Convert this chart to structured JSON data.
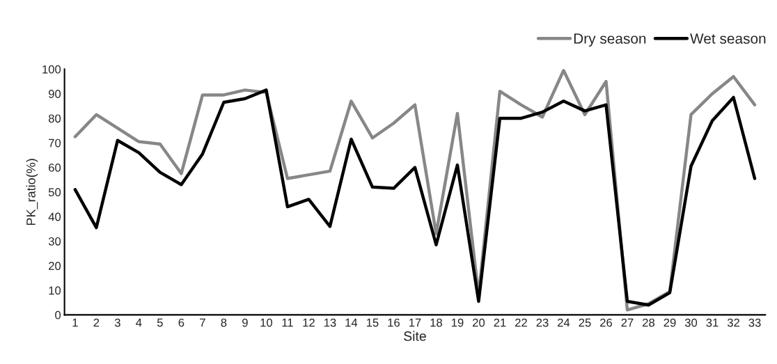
{
  "chart_data": {
    "type": "line",
    "xlabel": "Site",
    "ylabel": "PK_ratio(%)",
    "categories": [
      "1",
      "2",
      "3",
      "4",
      "5",
      "6",
      "7",
      "8",
      "9",
      "10",
      "11",
      "12",
      "13",
      "14",
      "15",
      "16",
      "17",
      "18",
      "19",
      "20",
      "21",
      "22",
      "23",
      "24",
      "25",
      "26",
      "27",
      "28",
      "29",
      "30",
      "31",
      "32",
      "33"
    ],
    "series": [
      {
        "name": "Dry season",
        "color": "#878787",
        "values": [
          72.5,
          81.5,
          76,
          70.5,
          69.5,
          57.5,
          89.5,
          89.5,
          91.5,
          90.5,
          55.5,
          57,
          58.5,
          87,
          72,
          78,
          85.5,
          33,
          82,
          8,
          91,
          85.5,
          80.5,
          99.5,
          81.5,
          95,
          2,
          4.5,
          9.5,
          81.5,
          90,
          97,
          85.5
        ]
      },
      {
        "name": "Wet season",
        "color": "#000000",
        "values": [
          51,
          35.5,
          71,
          66,
          58,
          53,
          65.5,
          86.5,
          88,
          91.5,
          44,
          47,
          36,
          71.5,
          52,
          51.5,
          60,
          28.5,
          61,
          5.5,
          80,
          80,
          82.5,
          87,
          83,
          85.5,
          5.5,
          4,
          9,
          60.5,
          79,
          88.5,
          55.5
        ]
      }
    ],
    "ylim": [
      0,
      100
    ],
    "yticks": [
      0,
      10,
      20,
      30,
      40,
      50,
      60,
      70,
      80,
      90,
      100
    ],
    "grid": false,
    "legend": "top right",
    "marker": "none",
    "line_style": "solid"
  }
}
